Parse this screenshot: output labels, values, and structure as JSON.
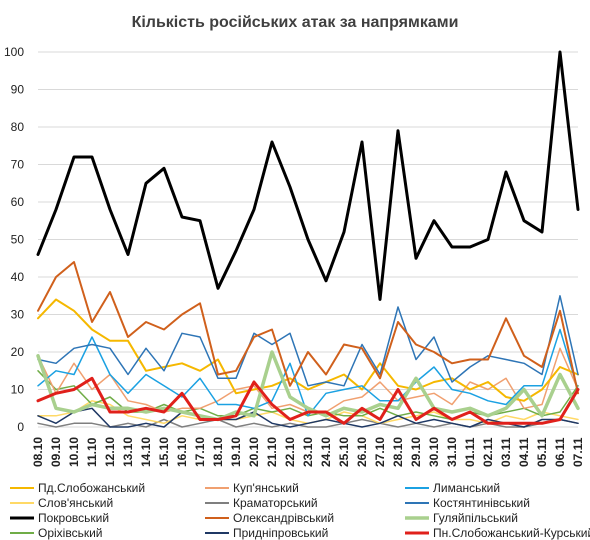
{
  "chart_data": {
    "type": "line",
    "title": "Кількість російських атак за напрямками",
    "xlabel": "",
    "ylabel": "",
    "ylim": [
      0,
      100
    ],
    "yticks": [
      0,
      10,
      20,
      30,
      40,
      50,
      60,
      70,
      80,
      90,
      100
    ],
    "grid": true,
    "legend_position": "bottom",
    "categories": [
      "08.10",
      "09.10",
      "10.10",
      "11.10",
      "12.10",
      "13.10",
      "14.10",
      "15.10",
      "16.10",
      "17.10",
      "18.10",
      "19.10",
      "20.10",
      "21.10",
      "22.10",
      "23.10",
      "24.10",
      "25.10",
      "26.10",
      "27.10",
      "28.10",
      "29.10",
      "30.10",
      "31.10",
      "01.11",
      "02.11",
      "03.11",
      "04.11",
      "05.11",
      "06.11",
      "07.11"
    ],
    "x_tick_labels": [
      "08.10",
      "09.10",
      "10.10",
      "11.10",
      "12.10",
      "13.10",
      "14.10",
      "15.10",
      "16.10",
      "17.10",
      "18.10",
      "19.10",
      "20.10",
      "21.10",
      "22.10",
      "23.10",
      "24.10",
      "25.10",
      "26.10",
      "27.10",
      "28.10",
      "29.10",
      "30.10",
      "31.10",
      "01.11",
      "02.11",
      "03.11",
      "04.11",
      "05.11",
      "06.11",
      "07.11"
    ],
    "series": [
      {
        "name": "Пд.Слобожанський",
        "color": "#f5b800",
        "width": 2,
        "values": [
          29,
          34,
          31,
          26,
          23,
          23,
          15,
          16,
          17,
          15,
          18,
          9,
          10,
          11,
          13,
          10,
          12,
          14,
          10,
          17,
          11,
          10,
          12,
          13,
          10,
          12,
          8,
          7,
          10,
          16,
          14
        ]
      },
      {
        "name": "Куп'янський",
        "color": "#f0a070",
        "width": 1.5,
        "values": [
          19,
          9,
          17,
          10,
          14,
          7,
          6,
          4,
          5,
          5,
          7,
          10,
          11,
          5,
          6,
          4,
          4,
          7,
          8,
          12,
          7,
          8,
          9,
          6,
          12,
          10,
          13,
          5,
          6,
          21,
          10
        ]
      },
      {
        "name": "Лиманський",
        "color": "#1ba1e2",
        "width": 1.5,
        "values": [
          11,
          15,
          14,
          24,
          14,
          9,
          14,
          11,
          8,
          13,
          6,
          6,
          5,
          7,
          17,
          3,
          9,
          10,
          11,
          7,
          7,
          12,
          16,
          10,
          9,
          7,
          6,
          11,
          11,
          26,
          10
        ]
      },
      {
        "name": "Слов'янський",
        "color": "#ffd966",
        "width": 1.5,
        "values": [
          3,
          3,
          4,
          7,
          6,
          3,
          2,
          1,
          3,
          2,
          2,
          2,
          3,
          4,
          2,
          1,
          2,
          4,
          3,
          1,
          2,
          3,
          4,
          2,
          2,
          1,
          3,
          2,
          4,
          3,
          2
        ]
      },
      {
        "name": "Краматорський",
        "color": "#7f7f7f",
        "width": 1.5,
        "values": [
          1,
          0,
          1,
          1,
          0,
          1,
          0,
          2,
          0,
          1,
          2,
          0,
          1,
          0,
          1,
          0,
          0,
          1,
          2,
          1,
          0,
          1,
          0,
          1,
          0,
          1,
          0,
          0,
          1,
          2,
          1
        ]
      },
      {
        "name": "Костянтинівський",
        "color": "#2e75b6",
        "width": 1.5,
        "values": [
          18,
          17,
          21,
          22,
          21,
          14,
          21,
          15,
          25,
          24,
          13,
          13,
          25,
          22,
          25,
          11,
          12,
          11,
          22,
          14,
          32,
          18,
          24,
          12,
          16,
          19,
          18,
          17,
          14,
          35,
          14
        ]
      },
      {
        "name": "Покровський",
        "color": "#000000",
        "width": 3,
        "values": [
          46,
          58,
          72,
          72,
          58,
          46,
          65,
          69,
          56,
          55,
          37,
          47,
          58,
          76,
          64,
          50,
          39,
          52,
          76,
          34,
          79,
          45,
          55,
          48,
          48,
          50,
          68,
          55,
          52,
          100,
          58
        ]
      },
      {
        "name": "Олександрівський",
        "color": "#d0601c",
        "width": 2,
        "values": [
          31,
          40,
          44,
          28,
          36,
          24,
          28,
          26,
          30,
          33,
          14,
          15,
          24,
          26,
          11,
          20,
          14,
          22,
          21,
          13,
          28,
          22,
          20,
          17,
          18,
          18,
          29,
          19,
          16,
          31,
          9
        ]
      },
      {
        "name": "Гуляйпільський",
        "color": "#a9d08e",
        "width": 3.5,
        "values": [
          19,
          5,
          4,
          6,
          5,
          5,
          4,
          5,
          4,
          3,
          2,
          4,
          3,
          20,
          8,
          5,
          3,
          5,
          4,
          6,
          5,
          13,
          5,
          4,
          5,
          3,
          5,
          10,
          3,
          14,
          5
        ]
      },
      {
        "name": "Оріхівський",
        "color": "#70ad47",
        "width": 1.5,
        "values": [
          15,
          10,
          11,
          6,
          8,
          4,
          4,
          6,
          4,
          5,
          3,
          3,
          5,
          4,
          5,
          3,
          4,
          3,
          3,
          5,
          3,
          4,
          3,
          2,
          4,
          3,
          4,
          5,
          3,
          4,
          11
        ]
      },
      {
        "name": "Придніпровський",
        "color": "#1f3864",
        "width": 1.5,
        "values": [
          3,
          1,
          4,
          5,
          0,
          0,
          1,
          0,
          4,
          3,
          2,
          2,
          4,
          1,
          0,
          1,
          2,
          1,
          0,
          1,
          3,
          1,
          2,
          1,
          0,
          2,
          1,
          0,
          2,
          2,
          1
        ]
      },
      {
        "name": "Пн.Слобожанський-Курський",
        "color": "#e0201b",
        "width": 3,
        "values": [
          7,
          9,
          10,
          13,
          4,
          4,
          5,
          4,
          9,
          2,
          2,
          3,
          12,
          6,
          2,
          4,
          4,
          1,
          5,
          2,
          10,
          2,
          5,
          2,
          4,
          1,
          1,
          1,
          1,
          2,
          10
        ]
      }
    ]
  }
}
